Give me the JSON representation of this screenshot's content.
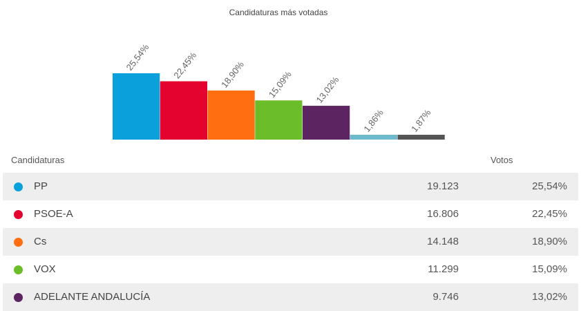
{
  "chart_data": {
    "type": "bar",
    "title": "Candidaturas más votadas",
    "categories": [
      "PP",
      "PSOE-A",
      "Cs",
      "VOX",
      "ADELANTE ANDALUCÍA",
      "",
      ""
    ],
    "values": [
      25.54,
      22.45,
      18.9,
      15.09,
      13.02,
      1.86,
      1.87
    ],
    "data_labels": [
      "25,54%",
      "22,45%",
      "18,90%",
      "15,09%",
      "13,02%",
      "1,86%",
      "1,87%"
    ],
    "colors": [
      "#0aa0dc",
      "#e4032e",
      "#ff6f12",
      "#6cbd2a",
      "#5c2460",
      "#6fb9cc",
      "#545454"
    ],
    "ylim": [
      0,
      25.54
    ],
    "grid": false,
    "legend": "none"
  },
  "table": {
    "header_candidaturas": "Candidaturas",
    "header_votos": "Votos",
    "rows": [
      {
        "name": "PP",
        "votes": "19.123",
        "pct": "25,54%",
        "color": "#0aa0dc"
      },
      {
        "name": "PSOE-A",
        "votes": "16.806",
        "pct": "22,45%",
        "color": "#e4032e"
      },
      {
        "name": "Cs",
        "votes": "14.148",
        "pct": "18,90%",
        "color": "#ff6f12"
      },
      {
        "name": "VOX",
        "votes": "11.299",
        "pct": "15,09%",
        "color": "#6cbd2a"
      },
      {
        "name": "ADELANTE ANDALUCÍA",
        "votes": "9.746",
        "pct": "13,02%",
        "color": "#5c2460"
      }
    ]
  }
}
